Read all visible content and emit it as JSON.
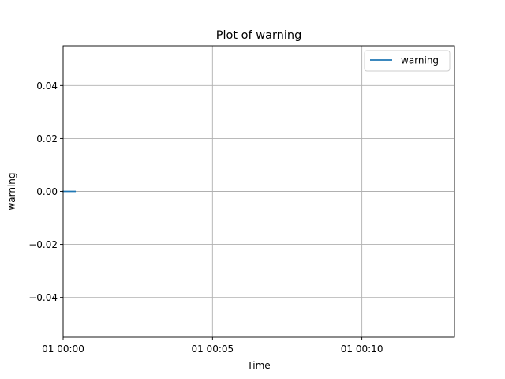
{
  "chart_data": {
    "type": "line",
    "title": "Plot of warning",
    "xlabel": "Time",
    "ylabel": "warning",
    "x_ticks": [
      "01 00:00",
      "01 00:05",
      "01 00:10"
    ],
    "x_tick_minutes": [
      0,
      5,
      10
    ],
    "xlim_minutes": [
      0,
      13.1
    ],
    "y_ticks": [
      -0.04,
      -0.02,
      0.0,
      0.02,
      0.04
    ],
    "y_tick_labels": [
      "−0.04",
      "−0.02",
      "0.00",
      "0.02",
      "0.04"
    ],
    "ylim": [
      -0.055,
      0.055
    ],
    "grid": true,
    "legend_position": "top-right",
    "series": [
      {
        "name": "warning",
        "color": "#1f77b4",
        "x_minutes": [
          0.0,
          0.4
        ],
        "values": [
          0.0,
          0.0
        ]
      }
    ]
  }
}
